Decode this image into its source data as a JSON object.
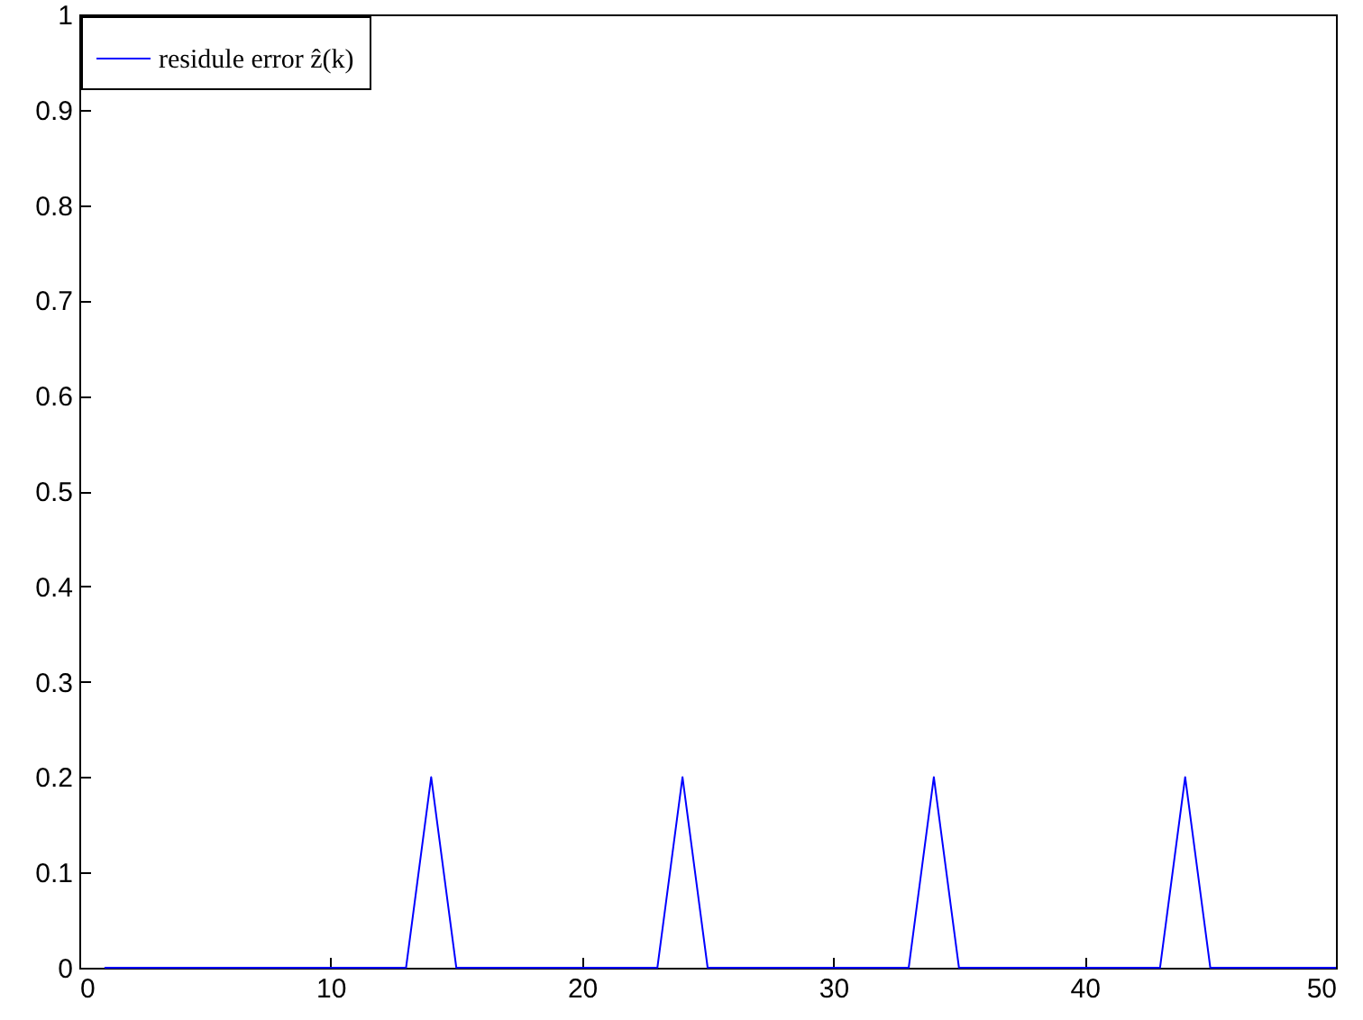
{
  "chart_data": {
    "type": "line",
    "x": [
      1,
      13,
      14,
      15,
      23,
      24,
      25,
      33,
      34,
      35,
      43,
      44,
      45,
      50
    ],
    "series": [
      {
        "name": "residule error ẑ(k)",
        "color": "#0000ff",
        "values": [
          0,
          0,
          0.2,
          0,
          0,
          0.2,
          0,
          0,
          0.2,
          0,
          0,
          0.2,
          0,
          0
        ]
      }
    ],
    "xlim": [
      0,
      50
    ],
    "xticks": [
      0,
      10,
      20,
      30,
      40,
      50
    ],
    "ylim": [
      0,
      1
    ],
    "yticks": [
      0,
      0.1,
      0.2,
      0.3,
      0.4,
      0.5,
      0.6,
      0.7,
      0.8,
      0.9,
      1
    ],
    "grid": false,
    "legend": "top left",
    "marker": "none",
    "line_style": "solid"
  }
}
